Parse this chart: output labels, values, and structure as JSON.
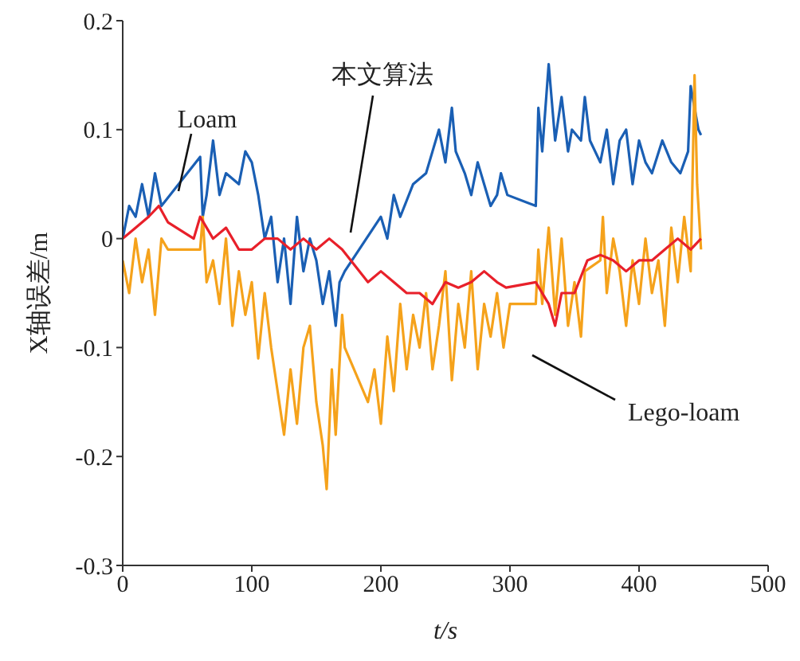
{
  "chart_data": {
    "type": "line",
    "xlabel": "t/s",
    "ylabel": "X轴误差/m",
    "xlim": [
      0,
      500
    ],
    "xticks": [
      0,
      100,
      200,
      300,
      400,
      500
    ],
    "ylim": [
      -0.3,
      0.2
    ],
    "yticks": [
      -0.3,
      -0.2,
      -0.1,
      0,
      0.1,
      0.2
    ],
    "grid": false,
    "legend": false,
    "marker": "none",
    "line_style": "solid",
    "series": [
      {
        "name": "Loam",
        "color": "#1a5fb4",
        "x": [
          0,
          5,
          10,
          15,
          20,
          25,
          30,
          60,
          62,
          65,
          70,
          75,
          80,
          90,
          95,
          100,
          105,
          110,
          115,
          120,
          125,
          130,
          135,
          140,
          145,
          150,
          155,
          160,
          165,
          168,
          172,
          200,
          205,
          210,
          215,
          225,
          235,
          240,
          245,
          250,
          255,
          258,
          265,
          270,
          275,
          280,
          285,
          290,
          293,
          298,
          320,
          322,
          325,
          330,
          335,
          340,
          345,
          348,
          355,
          358,
          362,
          370,
          375,
          380,
          385,
          390,
          395,
          400,
          405,
          410,
          418,
          425,
          432,
          438,
          440,
          443,
          446,
          448
        ],
        "values": [
          0.0,
          0.03,
          0.02,
          0.05,
          0.02,
          0.06,
          0.03,
          0.075,
          0.02,
          0.04,
          0.09,
          0.04,
          0.06,
          0.05,
          0.08,
          0.07,
          0.04,
          0.0,
          0.02,
          -0.04,
          0.0,
          -0.06,
          0.02,
          -0.03,
          0.0,
          -0.02,
          -0.06,
          -0.03,
          -0.08,
          -0.04,
          -0.03,
          0.02,
          0.0,
          0.04,
          0.02,
          0.05,
          0.06,
          0.08,
          0.1,
          0.07,
          0.12,
          0.08,
          0.06,
          0.04,
          0.07,
          0.05,
          0.03,
          0.04,
          0.06,
          0.04,
          0.03,
          0.12,
          0.08,
          0.16,
          0.09,
          0.13,
          0.08,
          0.1,
          0.09,
          0.13,
          0.09,
          0.07,
          0.1,
          0.05,
          0.09,
          0.1,
          0.05,
          0.09,
          0.07,
          0.06,
          0.09,
          0.07,
          0.06,
          0.08,
          0.14,
          0.12,
          0.1,
          0.095
        ]
      },
      {
        "name": "Lego-loam",
        "color": "#f5a21b",
        "x": [
          0,
          5,
          10,
          15,
          20,
          25,
          30,
          35,
          60,
          62,
          65,
          70,
          75,
          80,
          85,
          90,
          95,
          100,
          105,
          110,
          115,
          120,
          125,
          130,
          135,
          140,
          145,
          150,
          155,
          158,
          162,
          165,
          170,
          172,
          190,
          195,
          200,
          205,
          210,
          215,
          220,
          225,
          230,
          235,
          240,
          245,
          250,
          255,
          260,
          265,
          270,
          275,
          280,
          285,
          290,
          295,
          300,
          320,
          322,
          325,
          330,
          335,
          340,
          345,
          350,
          355,
          358,
          370,
          372,
          375,
          380,
          385,
          390,
          395,
          400,
          405,
          410,
          415,
          420,
          425,
          430,
          435,
          440,
          443,
          445,
          448
        ],
        "values": [
          -0.02,
          -0.05,
          0.0,
          -0.04,
          -0.01,
          -0.07,
          0.0,
          -0.01,
          -0.01,
          0.02,
          -0.04,
          -0.02,
          -0.06,
          0.0,
          -0.08,
          -0.03,
          -0.07,
          -0.04,
          -0.11,
          -0.05,
          -0.1,
          -0.14,
          -0.18,
          -0.12,
          -0.17,
          -0.1,
          -0.08,
          -0.15,
          -0.19,
          -0.23,
          -0.12,
          -0.18,
          -0.07,
          -0.1,
          -0.15,
          -0.12,
          -0.17,
          -0.09,
          -0.14,
          -0.06,
          -0.12,
          -0.07,
          -0.1,
          -0.05,
          -0.12,
          -0.08,
          -0.03,
          -0.13,
          -0.06,
          -0.1,
          -0.03,
          -0.12,
          -0.06,
          -0.09,
          -0.05,
          -0.1,
          -0.06,
          -0.06,
          -0.01,
          -0.06,
          0.01,
          -0.07,
          0.0,
          -0.08,
          -0.04,
          -0.09,
          -0.03,
          -0.02,
          0.02,
          -0.05,
          0.0,
          -0.03,
          -0.08,
          -0.02,
          -0.06,
          0.0,
          -0.05,
          -0.02,
          -0.08,
          0.01,
          -0.04,
          0.02,
          -0.03,
          0.15,
          0.05,
          -0.01
        ]
      },
      {
        "name": "本文算法",
        "color": "#e8202a",
        "x": [
          0,
          10,
          20,
          28,
          35,
          55,
          60,
          65,
          70,
          80,
          90,
          100,
          110,
          120,
          130,
          140,
          150,
          160,
          170,
          180,
          190,
          200,
          210,
          220,
          230,
          240,
          250,
          260,
          270,
          280,
          290,
          297,
          320,
          330,
          335,
          340,
          350,
          360,
          370,
          380,
          390,
          400,
          410,
          420,
          430,
          440,
          448
        ],
        "values": [
          0.0,
          0.01,
          0.02,
          0.03,
          0.015,
          0.0,
          0.02,
          0.01,
          0.0,
          0.01,
          -0.01,
          -0.01,
          0.0,
          0.0,
          -0.01,
          0.0,
          -0.01,
          0.0,
          -0.01,
          -0.025,
          -0.04,
          -0.03,
          -0.04,
          -0.05,
          -0.05,
          -0.06,
          -0.04,
          -0.045,
          -0.04,
          -0.03,
          -0.04,
          -0.045,
          -0.04,
          -0.06,
          -0.08,
          -0.05,
          -0.05,
          -0.02,
          -0.015,
          -0.02,
          -0.03,
          -0.02,
          -0.02,
          -0.01,
          0.0,
          -0.01,
          0.0
        ]
      }
    ]
  }
}
